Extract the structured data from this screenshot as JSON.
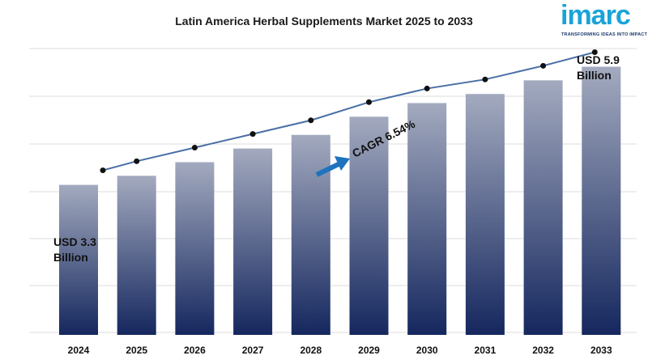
{
  "chart_data": {
    "type": "bar",
    "title": "Latin America Herbal Supplements Market 2025 to 2033",
    "categories": [
      "2024",
      "2025",
      "2026",
      "2027",
      "2028",
      "2029",
      "2030",
      "2031",
      "2032",
      "2033"
    ],
    "values": [
      3.3,
      3.5,
      3.8,
      4.1,
      4.4,
      4.8,
      5.1,
      5.3,
      5.6,
      5.9
    ],
    "trend_line": [
      3.3,
      3.5,
      3.8,
      4.1,
      4.4,
      4.8,
      5.1,
      5.3,
      5.6,
      5.9
    ],
    "ylim": [
      0,
      6.3
    ],
    "grid": true,
    "annotations": {
      "start_value": "USD 3.3",
      "start_unit": "Billion",
      "end_value": "USD 5.9",
      "end_unit": "Billion",
      "cagr": "CAGR 6.54%"
    },
    "colors": {
      "bar_top": "#a3aabf",
      "bar_bottom": "#15275e",
      "line": "#4a6fa5",
      "marker": "#111111",
      "arrow": "#1e73be",
      "grid": "#dcdcdc"
    }
  },
  "logo": {
    "wordmark": "imarc",
    "tagline": "TRANSFORMING IDEAS INTO IMPACT"
  }
}
